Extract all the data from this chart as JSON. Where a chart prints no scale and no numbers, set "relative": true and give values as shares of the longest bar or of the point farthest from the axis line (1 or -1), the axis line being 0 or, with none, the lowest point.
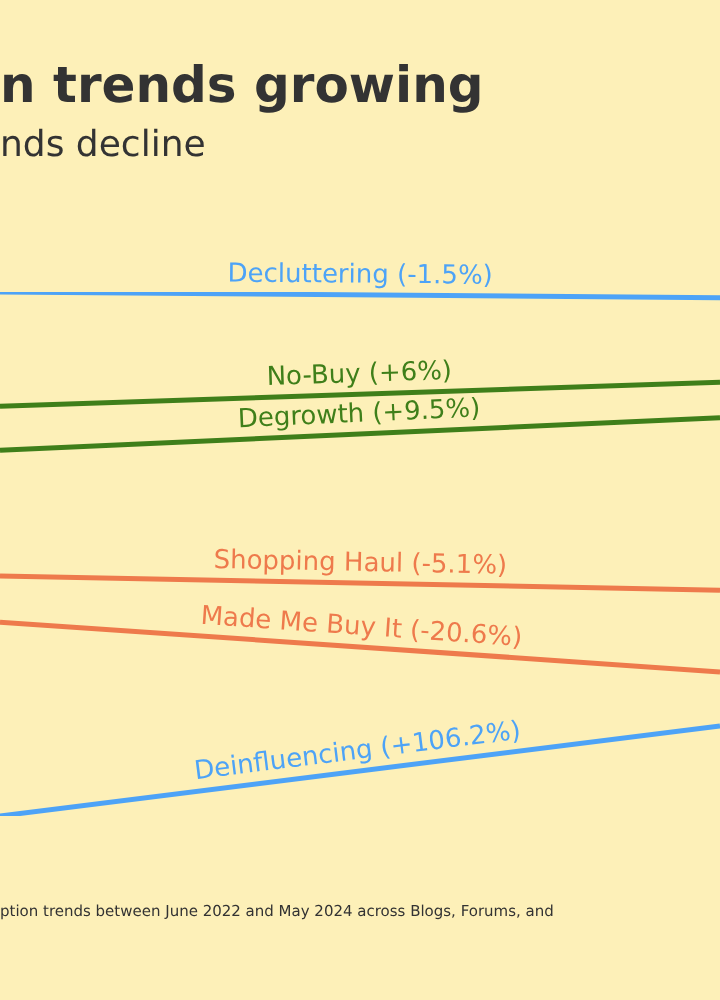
{
  "chart_data": {
    "type": "line",
    "title": "n trends growing",
    "subtitle": "nds decline",
    "categories": [
      null,
      null
    ],
    "relative": true,
    "legend": false,
    "marker": "none",
    "line_style": "solid",
    "series": [
      {
        "name": "Decluttering (-1.5%)",
        "color": "#4da3f7",
        "values": [
          1,
          0.989
        ]
      },
      {
        "name": "No-Buy (+6%)",
        "color": "#3f7f1a",
        "values": [
          0.782,
          0.828
        ]
      },
      {
        "name": "Degrowth (+9.5%)",
        "color": "#3f7f1a",
        "values": [
          0.698,
          0.76
        ]
      },
      {
        "name": "Shopping Haul (-5.1%)",
        "color": "#ee7a4c",
        "values": [
          0.458,
          0.431
        ]
      },
      {
        "name": "Made Me Buy It (-20.6%)",
        "color": "#ee7a4c",
        "values": [
          0.37,
          0.275
        ]
      },
      {
        "name": "Deinfluencing (+106.2%)",
        "color": "#4da3f7",
        "values": [
          0,
          0.172
        ]
      }
    ],
    "annotations": [
      "ption trends between June 2022 and May 2024 across Blogs, Forums, and"
    ]
  }
}
